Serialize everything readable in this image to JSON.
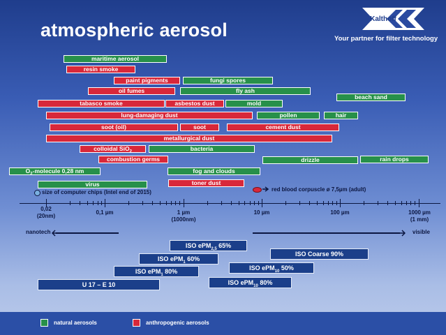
{
  "title": "atmospheric aerosol",
  "brand": "Kalthoff",
  "tagline": "Your partner for filter technology",
  "colors": {
    "natural": "#27904a",
    "anthropogenic": "#d8283a",
    "filter_class": "#1b3f8a"
  },
  "bars": {
    "maritime_aerosol": "maritime aerosol",
    "resin_smoke": "resin smoke",
    "paint_pigments": "paint pigments",
    "fungi_spores": "fungi spores",
    "oil_fumes": "oil fumes",
    "fly_ash": "fly ash",
    "beach_sand": "beach sand",
    "tabasco_smoke": "tabasco smoke",
    "asbestos_dust": "asbestos dust",
    "mold": "mold",
    "lung_damaging_dust": "lung-damaging dust",
    "pollen": "pollen",
    "hair": "hair",
    "soot_oil": "soot (oil)",
    "soot": "soot",
    "cement_dust": "cement dust",
    "metallurgical_dust": "metallurgical dust",
    "colloidal_sio2": "colloidal SiO",
    "colloidal_sio2_sub": "2",
    "bacteria": "bacteria",
    "combustion_germs": "combustion germs",
    "drizzle": "drizzle",
    "rain_drops": "rain drops",
    "o2_prefix": "O",
    "o2_sub": "2",
    "o2_rest": "-molecule 0,28 nm",
    "fog_and_clouds": "fog and clouds",
    "virus": "virus",
    "toner_dust": "toner dust"
  },
  "notes": {
    "computer_chips": "size of computer chips (Intel end of 2015)",
    "red_blood": "red blood corpuscle ø 7,5µm (adult)"
  },
  "axis": {
    "t1a": "0,02",
    "t1b": "(20nm)",
    "t2": "0,1 µm",
    "t3a": "1 µm",
    "t3b": "(1000nm)",
    "t4": "10 µm",
    "t5": "100 µm",
    "t6a": "1000 µm",
    "t6b": "(1 mm)",
    "nanotech": "nanotech",
    "visible": "visible"
  },
  "filters": {
    "epm25_a": "ISO ePM",
    "epm25_sub": "2,5",
    "epm25_b": " 65%",
    "coarse": "ISO Coarse 90%",
    "epm1_60_a": "ISO ePM",
    "epm1_60_sub": "1",
    "epm1_60_b": " 60%",
    "epm10_50_a": "ISO ePM",
    "epm10_50_sub": "10",
    "epm10_50_b": " 50%",
    "epm1_80_a": "ISO ePM",
    "epm1_80_sub": "1",
    "epm1_80_b": " 80%",
    "epm10_80_a": "ISO ePM",
    "epm10_80_sub": "10",
    "epm10_80_b": " 80%",
    "u17_e10": "U 17 –  E 10"
  },
  "legend": {
    "natural": "natural aerosols",
    "anthropogenic": "anthropogenic aerosols"
  }
}
